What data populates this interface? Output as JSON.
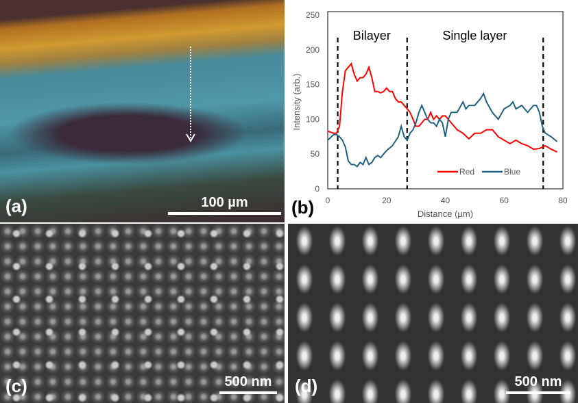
{
  "panels": {
    "a": {
      "label": "(a)",
      "scale": "100 µm"
    },
    "b": {
      "label": "(b)"
    },
    "c": {
      "label": "(c)",
      "scale": "500 nm"
    },
    "d": {
      "label": "(d)",
      "scale": "500 nm"
    }
  },
  "chart_data": {
    "type": "line",
    "xlabel": "Distance (µm)",
    "ylabel": "Intensity (arb.)",
    "xlim": [
      0,
      80
    ],
    "ylim": [
      0,
      250
    ],
    "xticks": [
      "0",
      "20",
      "40",
      "60",
      "80"
    ],
    "yticks": [
      "0",
      "50",
      "100",
      "150",
      "200",
      "250"
    ],
    "grid": false,
    "legend": "bottom-right",
    "annotations": [
      {
        "text": "Bilayer",
        "x": 15
      },
      {
        "text": "Single layer",
        "x": 50
      }
    ],
    "dashed_lines_x": [
      3.4,
      27,
      73.3
    ],
    "series": [
      {
        "name": "Red",
        "color": "#ff0000",
        "x": [
          0,
          2,
          3,
          4,
          5,
          6,
          7,
          8,
          9,
          10,
          11,
          12,
          13,
          14,
          15,
          16,
          17,
          18,
          19,
          20,
          21,
          22,
          23,
          24,
          25,
          26,
          27,
          28,
          29,
          30,
          31,
          32,
          33,
          34,
          35,
          36,
          37,
          38,
          39,
          40,
          42,
          44,
          46,
          48,
          50,
          52,
          54,
          56,
          58,
          60,
          62,
          64,
          66,
          68,
          70,
          72,
          74,
          76,
          78
        ],
        "y": [
          83,
          80,
          80,
          90,
          140,
          170,
          175,
          180,
          165,
          155,
          160,
          160,
          165,
          175,
          160,
          140,
          140,
          138,
          140,
          145,
          140,
          140,
          130,
          125,
          125,
          120,
          115,
          110,
          100,
          90,
          90,
          95,
          100,
          100,
          110,
          100,
          105,
          100,
          105,
          105,
          95,
          85,
          80,
          72,
          80,
          80,
          85,
          85,
          75,
          70,
          65,
          70,
          65,
          62,
          57,
          58,
          62,
          57,
          53
        ]
      },
      {
        "name": "Blue",
        "color": "#1f6080",
        "x": [
          0,
          2,
          3,
          4,
          5,
          6,
          7,
          8,
          9,
          10,
          11,
          12,
          13,
          14,
          15,
          16,
          17,
          18,
          19,
          20,
          22,
          24,
          25,
          26,
          27,
          28,
          29,
          30,
          31,
          32,
          33,
          34,
          35,
          36,
          37,
          38,
          39,
          40,
          41,
          42,
          44,
          46,
          47,
          48,
          50,
          52,
          53,
          54,
          56,
          58,
          60,
          62,
          63,
          64,
          66,
          68,
          70,
          71,
          72,
          73,
          74,
          76,
          78
        ],
        "y": [
          70,
          78,
          78,
          75,
          70,
          60,
          40,
          35,
          35,
          32,
          38,
          35,
          45,
          35,
          38,
          45,
          48,
          45,
          50,
          55,
          62,
          75,
          90,
          75,
          70,
          80,
          85,
          95,
          110,
          120,
          110,
          100,
          95,
          95,
          90,
          100,
          95,
          75,
          100,
          110,
          110,
          125,
          115,
          120,
          120,
          130,
          137,
          125,
          110,
          100,
          115,
          120,
          125,
          115,
          120,
          110,
          120,
          120,
          110,
          90,
          80,
          75,
          68
        ]
      }
    ]
  }
}
